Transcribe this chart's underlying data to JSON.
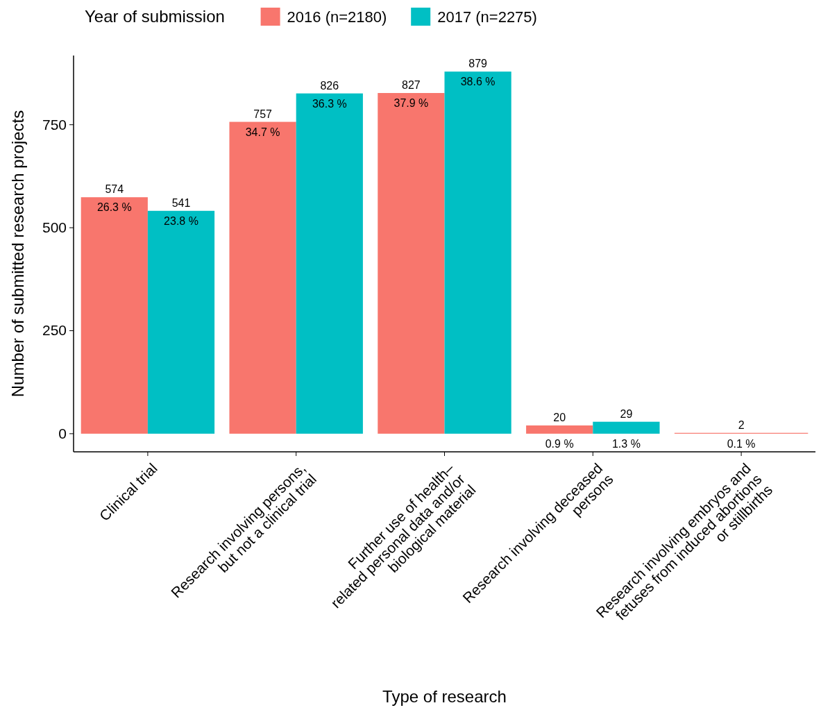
{
  "chart_data": {
    "type": "bar",
    "xlabel": "Type of research",
    "ylabel": "Number of submitted research projects",
    "legend_title": "Year of submission",
    "legend": "top",
    "categories": [
      "Clinical trial",
      "Research involving persons,\nbut not a clinical trial",
      "Further use of health–\nrelated personal data and/or\nbiological material",
      "Research involving deceased\npersons",
      "Research involving embryos and\nfetuses from induced abortions\nor stillbirths"
    ],
    "series": [
      {
        "name": "2016 (n=2180)",
        "color": "#f8766d",
        "values": [
          574,
          757,
          827,
          20,
          2
        ],
        "value_labels": [
          "574\n26.3 %",
          "757\n34.7 %",
          "827\n37.9 %",
          "20\n0.9 %",
          "2\n0.1 %"
        ]
      },
      {
        "name": "2017 (n=2275)",
        "color": "#00bfc4",
        "values": [
          541,
          826,
          879,
          29,
          null
        ],
        "value_labels": [
          "541\n23.8 %",
          "826\n36.3 %",
          "879\n38.6 %",
          "29\n1.3 %",
          null
        ]
      }
    ],
    "ylim": [
      -44,
      918
    ],
    "yticks": [
      0,
      250,
      500,
      750
    ],
    "grid": false
  }
}
